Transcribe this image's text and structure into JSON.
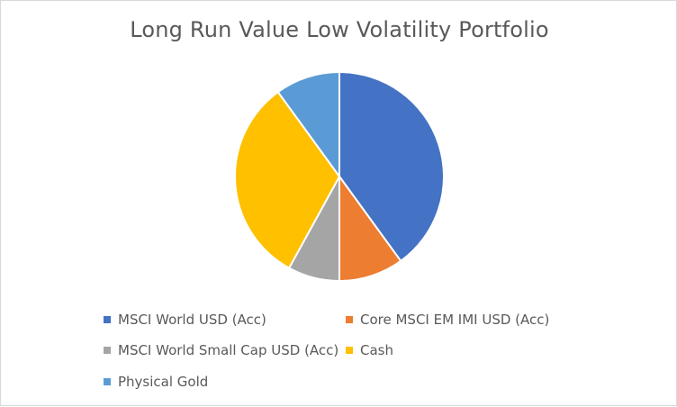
{
  "chart_data": {
    "type": "pie",
    "title": "Long Run Value Low Volatility Portfolio",
    "categories": [
      "MSCI World USD (Acc)",
      "Core MSCI EM IMI USD (Acc)",
      "MSCI World Small Cap USD (Acc)",
      "Cash",
      "Physical Gold"
    ],
    "values": [
      40,
      10,
      8,
      32,
      10
    ],
    "colors": [
      "#4472c4",
      "#ed7d31",
      "#a5a5a5",
      "#ffc000",
      "#5b9bd5"
    ],
    "legend_position": "bottom"
  }
}
